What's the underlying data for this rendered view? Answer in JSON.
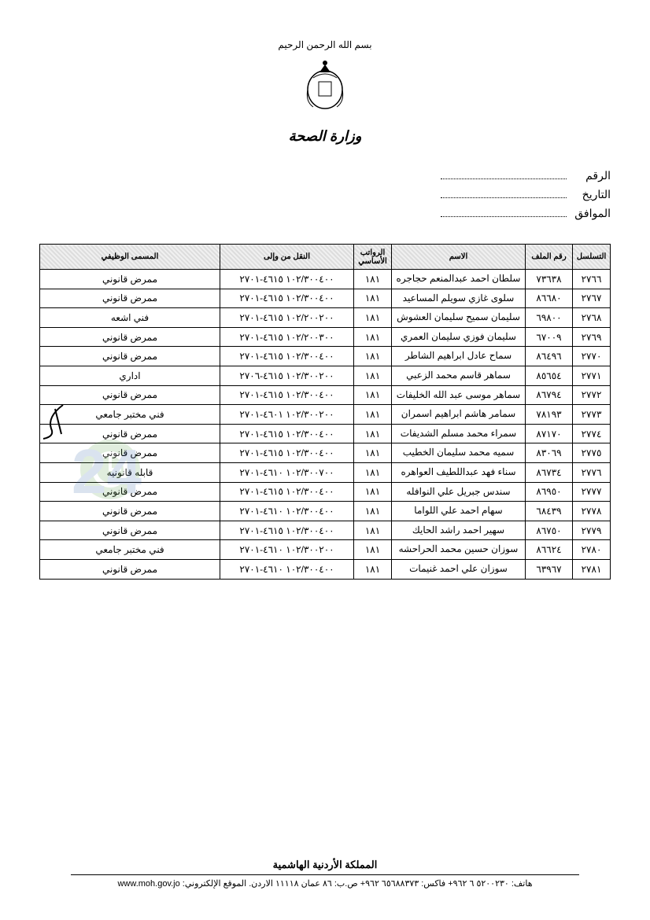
{
  "header": {
    "top_text": "بسم الله الرحمن الرحيم",
    "ministry": "وزارة الصحة"
  },
  "meta": {
    "number_label": "الرقم",
    "date_label": "التاريخ",
    "corresponding_label": "الموافق"
  },
  "table": {
    "columns": [
      "التسلسل",
      "رقم الملف",
      "الاسم",
      "الرواتب الأساسي",
      "النقل من وإلى",
      "المسمى الوظيفي"
    ],
    "col_widths": [
      "48px",
      "60px",
      "170px",
      "48px",
      "170px",
      "auto"
    ],
    "rows": [
      {
        "seq": "٢٧٦٦",
        "num": "٧٣٦٣٨",
        "name": "سلطان احمد عبدالمنعم حجاجره",
        "base": "١٨١",
        "trans": "١٠٢/٣٠٠٤٠٠ ٤٦١٥-٢٧٠١",
        "job": "ممرض قانوني"
      },
      {
        "seq": "٢٧٦٧",
        "num": "٨٦٦٨٠",
        "name": "سلوى غازي سويلم المساعيد",
        "base": "١٨١",
        "trans": "١٠٢/٣٠٠٤٠٠ ٤٦١٥-٢٧٠١",
        "job": "ممرض قانوني"
      },
      {
        "seq": "٢٧٦٨",
        "num": "٦٩٨٠٠",
        "name": "سليمان سميح سليمان العشوش",
        "base": "١٨١",
        "trans": "١٠٢/٢٠٠٢٠٠ ٤٦١٥-٢٧٠١",
        "job": "فني اشعه"
      },
      {
        "seq": "٢٧٦٩",
        "num": "٦٧٠٠٩",
        "name": "سليمان فوزي سليمان العمري",
        "base": "١٨١",
        "trans": "١٠٢/٢٠٠٣٠٠ ٤٦١٥-٢٧٠١",
        "job": "ممرض قانوني"
      },
      {
        "seq": "٢٧٧٠",
        "num": "٨٦٤٩٦",
        "name": "سماح عادل ابراهيم الشاطر",
        "base": "١٨١",
        "trans": "١٠٢/٣٠٠٤٠٠ ٤٦١٥-٢٧٠١",
        "job": "ممرض قانوني"
      },
      {
        "seq": "٢٧٧١",
        "num": "٨٥٦٥٤",
        "name": "سماهر قاسم محمد الزعبي",
        "base": "١٨١",
        "trans": "١٠٢/٣٠٠٢٠٠ ٤٦١٥-٢٧٠٦",
        "job": "اداري"
      },
      {
        "seq": "٢٧٧٢",
        "num": "٨٦٧٩٤",
        "name": "سماهر موسى عبد الله الخليفات",
        "base": "١٨١",
        "trans": "١٠٢/٣٠٠٤٠٠ ٤٦١٥-٢٧٠١",
        "job": "ممرض قانوني"
      },
      {
        "seq": "٢٧٧٣",
        "num": "٧٨١٩٣",
        "name": "سمامر هاشم ابراهيم اسمران",
        "base": "١٨١",
        "trans": "١٠٢/٣٠٠٢٠٠ ٤٦٠١-٢٧٠١",
        "job": "فني مختبر جامعي"
      },
      {
        "seq": "٢٧٧٤",
        "num": "٨٧١٧٠",
        "name": "سمراء محمد مسلم الشديفات",
        "base": "١٨١",
        "trans": "١٠٢/٣٠٠٤٠٠ ٤٦١٥-٢٧٠١",
        "job": "ممرض قانوني"
      },
      {
        "seq": "٢٧٧٥",
        "num": "٨٣٠٦٩",
        "name": "سميه محمد سليمان الخطيب",
        "base": "١٨١",
        "trans": "١٠٢/٣٠٠٤٠٠ ٤٦١٥-٢٧٠١",
        "job": "ممرض قانوني"
      },
      {
        "seq": "٢٧٧٦",
        "num": "٨٦٧٣٤",
        "name": "سناء فهد عبداللطيف العواهره",
        "base": "١٨١",
        "trans": "١٠٢/٣٠٠٧٠٠ ٤٦١٠-٢٧٠١",
        "job": "قابله قانونيه"
      },
      {
        "seq": "٢٧٧٧",
        "num": "٨٦٩٥٠",
        "name": "سندس جبريل علي النوافله",
        "base": "١٨١",
        "trans": "١٠٢/٣٠٠٤٠٠ ٤٦١٥-٢٧٠١",
        "job": "ممرض قانوني"
      },
      {
        "seq": "٢٧٧٨",
        "num": "٦٨٤٣٩",
        "name": "سهام احمد علي اللواما",
        "base": "١٨١",
        "trans": "١٠٢/٣٠٠٤٠٠ ٤٦١٠-٢٧٠١",
        "job": "ممرض قانوني"
      },
      {
        "seq": "٢٧٧٩",
        "num": "٨٦٧٥٠",
        "name": "سهير احمد راشد الحايك",
        "base": "١٨١",
        "trans": "١٠٢/٣٠٠٤٠٠ ٤٦١٥-٢٧٠١",
        "job": "ممرض قانوني"
      },
      {
        "seq": "٢٧٨٠",
        "num": "٨٦٦٢٤",
        "name": "سوزان حسين محمد الحراحشه",
        "base": "١٨١",
        "trans": "١٠٢/٣٠٠٢٠٠ ٤٦١٠-٢٧٠١",
        "job": "فني مختبر جامعي"
      },
      {
        "seq": "٢٧٨١",
        "num": "٦٣٩٦٧",
        "name": "سوزان علي احمد غنيمات",
        "base": "١٨١",
        "trans": "١٠٢/٣٠٠٤٠٠ ٤٦١٠-٢٧٠١",
        "job": "ممرض قانوني"
      }
    ]
  },
  "footer": {
    "kingdom": "المملكة الأردنية الهاشمية",
    "contact": "هاتف: ٥٢٠٠٢٣٠ ٦ ٩٦٢+ فاكس: ٦٥٦٨٨٣٧٣ ٩٦٢+ ص.ب: ٨٦ عمان ١١١١٨ الاردن. الموقع الإلكتروني: www.moh.gov.jo"
  },
  "watermark": {
    "text": "JO24",
    "color1": "#5a9e4a",
    "color2": "#3a6aa8"
  },
  "styling": {
    "page_bg": "#ffffff",
    "text_color": "#000000",
    "border_color": "#000000",
    "header_hatch_bg": "repeating-linear-gradient(45deg,#f0f0f0,#f0f0f0 2px,#ddd 2px,#ddd 4px)",
    "body_font_size": 12,
    "header_font_size": 10
  }
}
